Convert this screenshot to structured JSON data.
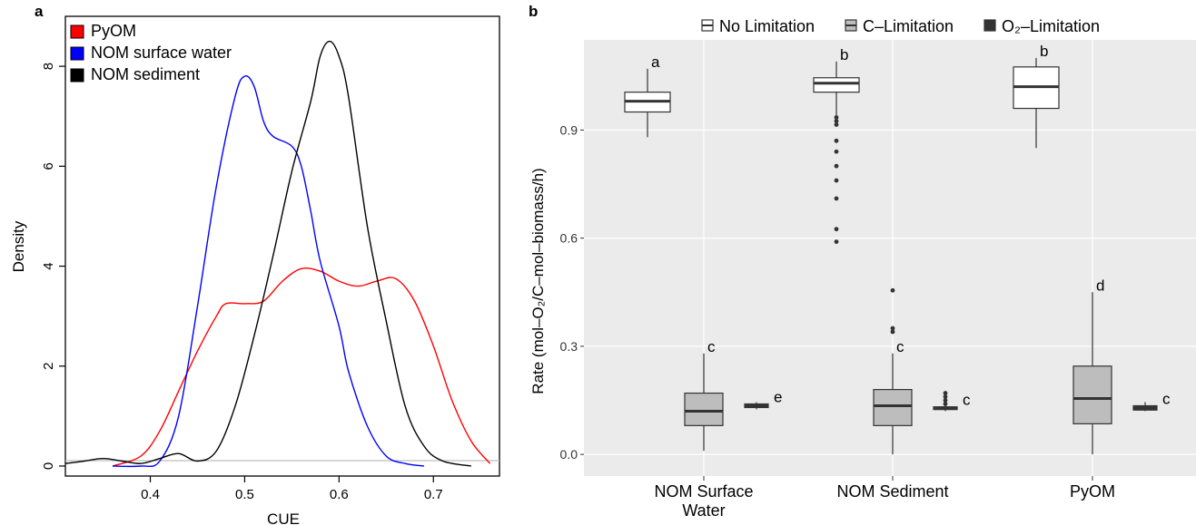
{
  "chart_data": [
    {
      "panel": "a",
      "type": "line",
      "xlabel": "CUE",
      "ylabel": "Density",
      "xlim": [
        0.31,
        0.77
      ],
      "ylim": [
        -0.2,
        9.0
      ],
      "xticks": [
        "0.4",
        "0.5",
        "0.6",
        "0.7"
      ],
      "yticks": [
        "0",
        "2",
        "4",
        "6",
        "8"
      ],
      "grid": false,
      "legend_position": "top-left",
      "series": [
        {
          "name": "PyOM",
          "color": "#ff0000",
          "points": [
            [
              0.36,
              0.0
            ],
            [
              0.39,
              0.2
            ],
            [
              0.41,
              0.7
            ],
            [
              0.43,
              1.5
            ],
            [
              0.45,
              2.3
            ],
            [
              0.47,
              3.0
            ],
            [
              0.48,
              3.25
            ],
            [
              0.5,
              3.25
            ],
            [
              0.52,
              3.3
            ],
            [
              0.54,
              3.7
            ],
            [
              0.56,
              3.95
            ],
            [
              0.58,
              3.9
            ],
            [
              0.6,
              3.7
            ],
            [
              0.62,
              3.6
            ],
            [
              0.64,
              3.7
            ],
            [
              0.66,
              3.75
            ],
            [
              0.68,
              3.3
            ],
            [
              0.7,
              2.4
            ],
            [
              0.72,
              1.3
            ],
            [
              0.74,
              0.5
            ],
            [
              0.76,
              0.05
            ]
          ]
        },
        {
          "name": "NOM surface water",
          "color": "#0000ff",
          "points": [
            [
              0.36,
              0.0
            ],
            [
              0.39,
              0.0
            ],
            [
              0.41,
              0.1
            ],
            [
              0.43,
              1.0
            ],
            [
              0.45,
              3.2
            ],
            [
              0.47,
              5.6
            ],
            [
              0.49,
              7.4
            ],
            [
              0.5,
              7.8
            ],
            [
              0.51,
              7.6
            ],
            [
              0.52,
              6.9
            ],
            [
              0.53,
              6.6
            ],
            [
              0.55,
              6.4
            ],
            [
              0.56,
              6.0
            ],
            [
              0.57,
              5.1
            ],
            [
              0.58,
              4.1
            ],
            [
              0.6,
              2.8
            ],
            [
              0.61,
              1.9
            ],
            [
              0.63,
              0.8
            ],
            [
              0.65,
              0.2
            ],
            [
              0.67,
              0.05
            ],
            [
              0.69,
              0.0
            ]
          ]
        },
        {
          "name": "NOM sediment",
          "color": "#000000",
          "points": [
            [
              0.31,
              0.05
            ],
            [
              0.33,
              0.1
            ],
            [
              0.35,
              0.15
            ],
            [
              0.37,
              0.1
            ],
            [
              0.39,
              0.05
            ],
            [
              0.41,
              0.15
            ],
            [
              0.43,
              0.25
            ],
            [
              0.45,
              0.1
            ],
            [
              0.47,
              0.3
            ],
            [
              0.49,
              1.2
            ],
            [
              0.51,
              2.6
            ],
            [
              0.53,
              4.2
            ],
            [
              0.55,
              5.9
            ],
            [
              0.57,
              7.3
            ],
            [
              0.58,
              8.2
            ],
            [
              0.59,
              8.5
            ],
            [
              0.6,
              8.2
            ],
            [
              0.61,
              7.4
            ],
            [
              0.63,
              4.8
            ],
            [
              0.65,
              2.9
            ],
            [
              0.67,
              1.2
            ],
            [
              0.69,
              0.4
            ],
            [
              0.71,
              0.1
            ],
            [
              0.74,
              0.0
            ]
          ]
        }
      ]
    },
    {
      "panel": "b",
      "type": "box",
      "ylabel": "Rate (mol–O₂/C–mol–biomass/h)",
      "ylim": [
        -0.06,
        1.15
      ],
      "yticks": [
        "0.0",
        "0.3",
        "0.6",
        "0.9"
      ],
      "categories": [
        "NOM Surface Water",
        "NOM Sediment",
        "PyOM"
      ],
      "grid": true,
      "background": "#ebebeb",
      "legend_position": "top",
      "legend": [
        "No Limitation",
        "C–Limitation",
        "O₂–Limitation"
      ],
      "series": [
        {
          "name": "No Limitation",
          "fill": "#ffffff",
          "boxes": [
            {
              "category": "NOM Surface Water",
              "min": 0.88,
              "q1": 0.95,
              "median": 0.98,
              "q3": 1.005,
              "max": 1.07,
              "letter": "a",
              "outliers": []
            },
            {
              "category": "NOM Sediment",
              "min": 0.94,
              "q1": 1.005,
              "median": 1.03,
              "q3": 1.045,
              "max": 1.09,
              "letter": "b",
              "outliers": [
                0.935,
                0.925,
                0.915,
                0.87,
                0.84,
                0.8,
                0.76,
                0.71,
                0.625,
                0.59
              ]
            },
            {
              "category": "PyOM",
              "min": 0.85,
              "q1": 0.96,
              "median": 1.02,
              "q3": 1.075,
              "max": 1.1,
              "letter": "b",
              "outliers": []
            }
          ]
        },
        {
          "name": "C–Limitation",
          "fill": "#bdbdbd",
          "boxes": [
            {
              "category": "NOM Surface Water",
              "min": 0.01,
              "q1": 0.08,
              "median": 0.12,
              "q3": 0.17,
              "max": 0.28,
              "letter": "c",
              "outliers": []
            },
            {
              "category": "NOM Sediment",
              "min": 0.0,
              "q1": 0.08,
              "median": 0.135,
              "q3": 0.18,
              "max": 0.28,
              "letter": "c",
              "outliers": [
                0.455,
                0.35,
                0.34
              ]
            },
            {
              "category": "PyOM",
              "min": 0.0,
              "q1": 0.085,
              "median": 0.155,
              "q3": 0.245,
              "max": 0.45,
              "letter": "d",
              "outliers": []
            }
          ]
        },
        {
          "name": "O₂–Limitation",
          "fill": "#333333",
          "boxes": [
            {
              "category": "NOM Surface Water",
              "min": 0.125,
              "q1": 0.13,
              "median": 0.135,
              "q3": 0.14,
              "max": 0.145,
              "letter": "e",
              "outliers": []
            },
            {
              "category": "NOM Sediment",
              "min": 0.12,
              "q1": 0.125,
              "median": 0.128,
              "q3": 0.132,
              "max": 0.165,
              "letter": "c",
              "outliers": [
                0.17,
                0.16,
                0.15,
                0.14
              ]
            },
            {
              "category": "PyOM",
              "min": 0.12,
              "q1": 0.123,
              "median": 0.128,
              "q3": 0.135,
              "max": 0.145,
              "letter": "c",
              "outliers": []
            }
          ]
        }
      ]
    }
  ],
  "labels": {
    "panel_a": "a",
    "panel_b": "b",
    "cat_1_line1": "NOM Surface",
    "cat_1_line2": "Water",
    "cat_2": "NOM Sediment",
    "cat_3": "PyOM"
  }
}
